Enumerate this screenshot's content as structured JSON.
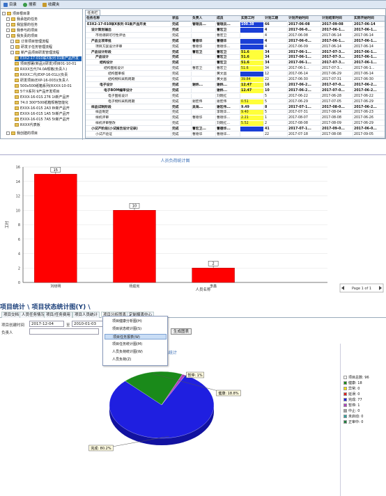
{
  "top": {
    "tabs": [
      {
        "label": "目录",
        "color": "#3a72c8"
      },
      {
        "label": "搜索",
        "color": "#3a9a48"
      },
      {
        "label": "收藏夹",
        "color": "#c69a2c"
      }
    ],
    "right_tab": "任务栏"
  },
  "tree": {
    "items": [
      "项目根目录",
      "我承担的任务",
      "我监督的任务",
      "我参与的项目",
      "我负责的项目",
      "订单项目管理流程",
      "研发子任务管理流程",
      "新产品项目研发管理流程",
      "E3X2-17-010联X系列 01新产品开发",
      "项目部署(新品)(研发)项目01-10-01",
      "RXXX五代74.0A规格(负责人)",
      "RXXX二代(EXP-16-01L)(负责",
      "研发项目(EXP-16-003)(负责人",
      "500x500纸箱系列(RXXX-10-01",
      "5个X系列 9产品开发项目",
      "EXXX-16-01S 276 1t新产品开",
      "74.0 300*500纸箱规格智能化",
      "EXXX-16-015 2A3 8t新产品开",
      "EXXX-16-015 1A5 5t新产品开",
      "EXXX-16-015 7A5 5t新产品开",
      "RXXX代表板",
      "我创建的项目"
    ]
  },
  "grid": {
    "headers": [
      "任务名称",
      "状态",
      "负责人",
      "成员",
      "实际工时",
      "计划工期",
      "计划开始时间",
      "计划结束时间",
      "实际开始时间"
    ],
    "rows": [
      [
        "E3X2-17-010联X系列 01新产品开发",
        "完成",
        "管理员...",
        "管理员...",
        "100.38",
        "66",
        "2017-06-08",
        "2017-09-08",
        "2017-06-14"
      ],
      [
        "设计策划输出",
        "完成",
        "",
        "曹宏卫",
        "",
        "4",
        "2017-06-0...",
        "2017-06-1...",
        "2017-06-1..."
      ],
      [
        "市场调研可行性评估",
        "完成",
        "",
        "曹宏卫",
        "",
        "4",
        "2017-06-08",
        "2017-06-14",
        "2017-06-14"
      ],
      [
        "产品立项审批",
        "完成",
        "曹德华",
        "曹德华",
        "",
        "4",
        "2017-06-0...",
        "2017-06-1...",
        "2017-06-1..."
      ],
      [
        "项目方案设计评审",
        "完成",
        "曹德华",
        "曹德华...",
        "",
        "4",
        "2017-06-09",
        "2017-06-14",
        "2017-06-14"
      ],
      [
        "产品设计阶段",
        "完成",
        "曹宏卫",
        "曹宏卫",
        "51.6",
        "34",
        "2017-06-1...",
        "2017-07-3...",
        "2017-06-1..."
      ],
      [
        "产品设计",
        "完成",
        "",
        "曹宏卫",
        "51.6",
        "34",
        "2017-06-1...",
        "2017-07-3...",
        "2017-06-1..."
      ],
      [
        "结构设计",
        "完成",
        "",
        "曹宏卫",
        "51.6",
        "34",
        "2017-06-1...",
        "2017-07-3...",
        "2017-06-1..."
      ],
      [
        "结构图纸设计",
        "完成",
        "曹宏卫",
        "曹宏卫",
        "51.6",
        "34",
        "2017-06-1...",
        "2017-07-3...",
        "2017-06-1..."
      ],
      [
        "结构图审核",
        "完成",
        "",
        "黄文昌",
        "",
        "12",
        "2017-06-14",
        "2017-06-29",
        "2017-06-14"
      ],
      [
        "结构物料采购周期",
        "完成",
        "",
        "黄文昌",
        "39.84",
        "22",
        "2017-06-30",
        "2017-07-31",
        "2017-06-30"
      ],
      [
        "电子设计",
        "完成",
        "谢炜...",
        "谢炜...",
        "12.47",
        "16",
        "2017-06-2...",
        "2017-07-0...",
        "2017-06-2..."
      ],
      [
        "电子BOM编审设计",
        "完成",
        "",
        "谢炜...",
        "12.47",
        "10",
        "2017-06-2...",
        "2017-07-0...",
        "2017-06-2..."
      ],
      [
        "电子图纸设计",
        "完成",
        "",
        "刘晓红",
        "",
        "5",
        "2017-06-22",
        "2017-06-28",
        "2017-06-22"
      ],
      [
        "电子物料采购周期",
        "完成",
        "谢宏伟",
        "谢宏伟",
        "0.51",
        "5",
        "2017-06-29",
        "2017-07-05",
        "2017-06-29"
      ],
      [
        "样品试制阶段",
        "完成",
        "吴海...",
        "谢宏伟...",
        "9.49",
        "8",
        "2017-07-1...",
        "2017-08-0...",
        "2017-06-2..."
      ],
      [
        "样品制定",
        "完成",
        "",
        "李晓华...",
        "9.40",
        "5",
        "2017-07-31",
        "2017-08-04",
        "2017-06-23"
      ],
      [
        "样机评审",
        "完成",
        "曹德华",
        "曹德华...",
        "2.21",
        "1",
        "2017-08-07",
        "2017-08-08",
        "2017-06-26"
      ],
      [
        "样机评审整改",
        "完成",
        "",
        "刘晓红...",
        "5.52",
        "2",
        "2017-08-08",
        "2017-08-09",
        "2017-06-29"
      ],
      [
        "小试产阶段(小试报告设计记录)",
        "完成",
        "曹宏卫...",
        "曹德华...",
        "",
        "41",
        "2017-07-1...",
        "2017-09-0...",
        "2017-06-0..."
      ],
      [
        "小试产验证",
        "完成",
        "曹德华",
        "曹德华...",
        "",
        "22",
        "2017-07-18",
        "2017-08-08",
        "2017-09-05"
      ]
    ]
  },
  "bar_chart": {
    "chart_data": {
      "type": "bar",
      "title": "人员负荷统计图",
      "categories": [
        "刘晓明",
        "杨庭宪",
        "李鑫"
      ],
      "values": [
        15,
        10,
        2
      ],
      "xlabel": "人员名称",
      "ylabel": "工时",
      "ylim": [
        0,
        16
      ],
      "yticks": [
        0,
        2,
        4,
        6,
        8,
        10,
        12,
        14,
        16
      ],
      "color": "#ff0000"
    },
    "pager": "Page 1 of 1"
  },
  "panel3": {
    "title": "项目统计 \\ 项目状态统计图(Y) \\",
    "tabs": [
      "项目交档",
      "人员任务情况",
      "项目/任务费用",
      "项目人员统计",
      "项目分析图表",
      "定制报表中心"
    ],
    "filter": {
      "label_created": "项目创建时间",
      "start_date": "2017-12-04",
      "to": "至",
      "end_date": "2010-01-03",
      "label_person": "负责人",
      "button": "生成图表"
    },
    "menu": [
      "项目健康分析图(H)",
      "项目状态统计图(S)",
      "项目任务报表(W)",
      "项目任务统计图(M)",
      "人员负荷统计图(W)",
      "人员负荷(Z)"
    ],
    "chart_title": "状态统计"
  },
  "pie_chart": {
    "chart_data": {
      "type": "pie",
      "labels": [
        "完成",
        "健康",
        "暂停"
      ],
      "values": [
        80.2,
        18.8,
        1
      ],
      "slice_labels": [
        "完成: 80.2%",
        "健康: 18.8%",
        "暂停: 1%"
      ],
      "colors": [
        "#1f1fe0",
        "#1a8a1a",
        "#b040c0"
      ]
    },
    "legend": [
      {
        "label": "项目总数: 96",
        "color": "#ffffff"
      },
      {
        "label": "健康: 18",
        "color": "#1a8a1a"
      },
      {
        "label": "异常: 0",
        "color": "#ffe000"
      },
      {
        "label": "延误: 0",
        "color": "#e02020"
      },
      {
        "label": "完成: 77",
        "color": "#1f1fe0"
      },
      {
        "label": "暂停: 1",
        "color": "#b040c0"
      },
      {
        "label": "中止: 0",
        "color": "#a0a0a0"
      },
      {
        "label": "未启动: 0",
        "color": "#30a0a0"
      },
      {
        "label": "正审中: 0",
        "color": "#208040"
      }
    ]
  }
}
